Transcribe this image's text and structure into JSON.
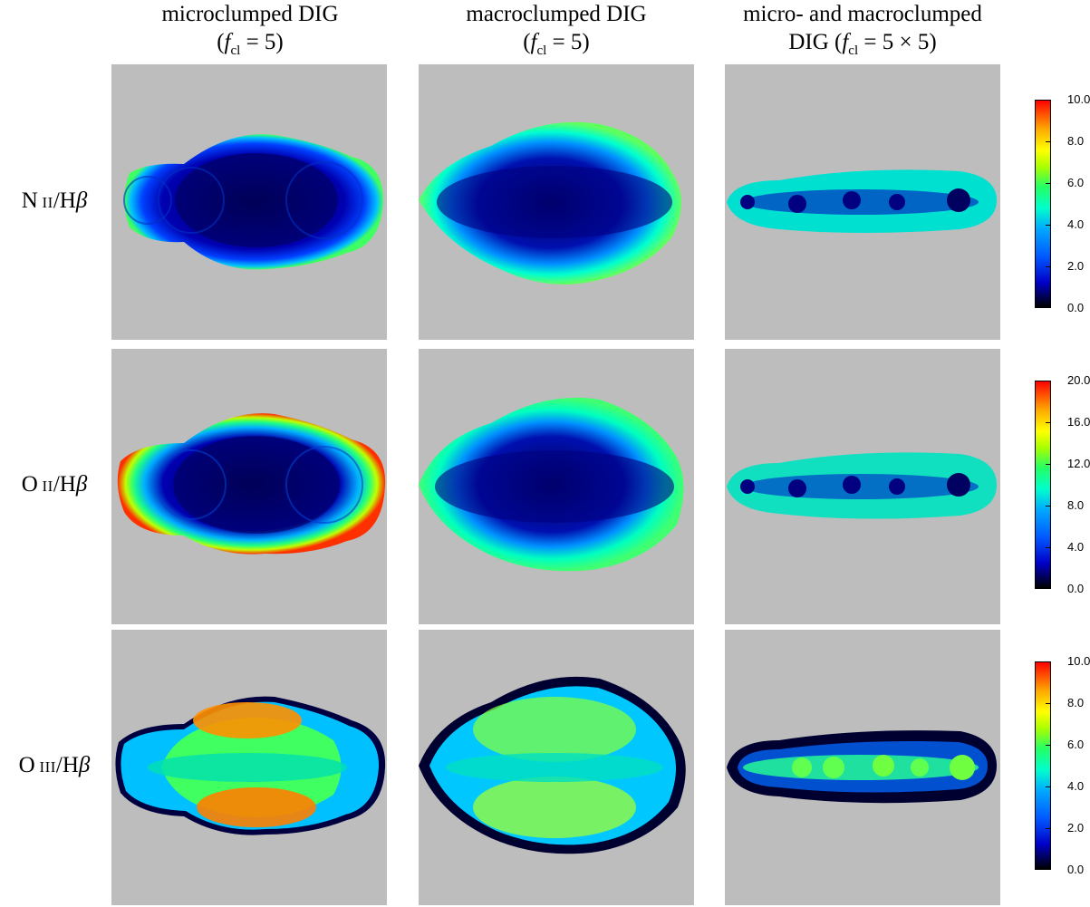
{
  "columns": [
    {
      "line1": "microclumped DIG",
      "line2_pre": "(",
      "f": "f",
      "cl": "cl",
      "line2_post": " = 5)"
    },
    {
      "line1": "macroclumped DIG",
      "line2_pre": "(",
      "f": "f",
      "cl": "cl",
      "line2_post": " = 5)"
    },
    {
      "line1": "micro- and macroclumped",
      "line2_pre": "DIG (",
      "f": "f",
      "cl": "cl",
      "line2_post": " = 5 × 5)"
    }
  ],
  "rows": [
    {
      "ion_letter": "N",
      "ion_stage": "II",
      "sep": "/H",
      "beta": "β",
      "colorbar": {
        "min": 0.0,
        "max": 10.0,
        "ticks": [
          "0.0",
          "2.0",
          "4.0",
          "6.0",
          "8.0",
          "10.0"
        ]
      }
    },
    {
      "ion_letter": "O",
      "ion_stage": "II",
      "sep": "/H",
      "beta": "β",
      "colorbar": {
        "min": 0.0,
        "max": 20.0,
        "ticks": [
          "0.0",
          "4.0",
          "8.0",
          "12.0",
          "16.0",
          "20.0"
        ]
      }
    },
    {
      "ion_letter": "O",
      "ion_stage": "III",
      "sep": "/H",
      "beta": "β",
      "colorbar": {
        "min": 0.0,
        "max": 10.0,
        "ticks": [
          "0.0",
          "2.0",
          "4.0",
          "6.0",
          "8.0",
          "10.0"
        ]
      }
    }
  ],
  "colors": {
    "panel_background": "#bdbdbd"
  }
}
